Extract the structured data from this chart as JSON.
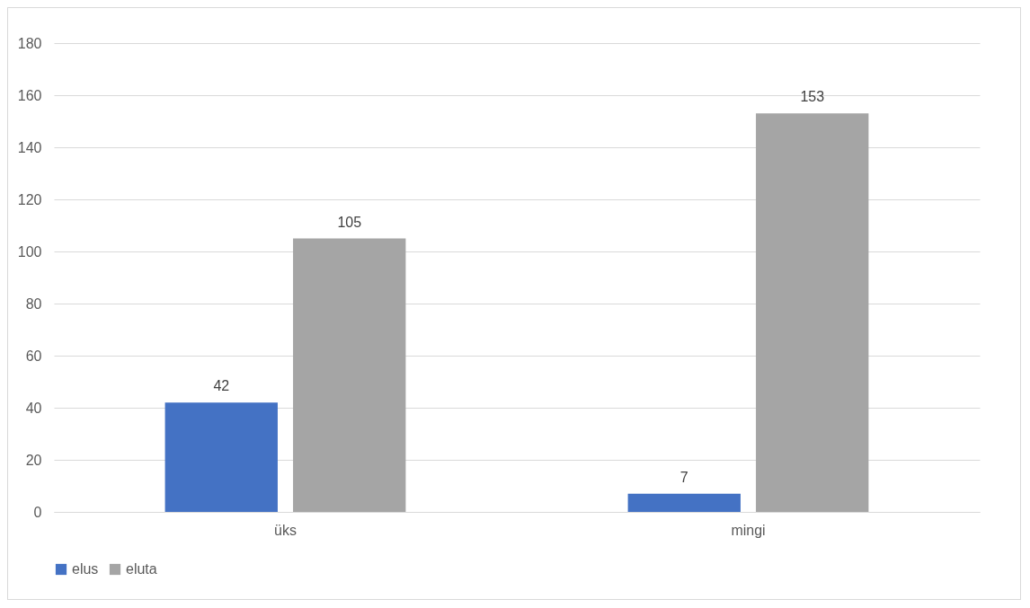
{
  "chart_data": {
    "type": "bar",
    "categories": [
      "üks",
      "mingi"
    ],
    "series": [
      {
        "name": "elus",
        "color": "#4472c4",
        "values": [
          42,
          7
        ]
      },
      {
        "name": "eluta",
        "color": "#a5a5a5",
        "values": [
          105,
          153
        ]
      }
    ],
    "ylim": [
      0,
      180
    ],
    "yticks": [
      0,
      20,
      40,
      60,
      80,
      100,
      120,
      140,
      160,
      180
    ],
    "grid": "y",
    "legend": "bottom",
    "data_labels": true
  }
}
